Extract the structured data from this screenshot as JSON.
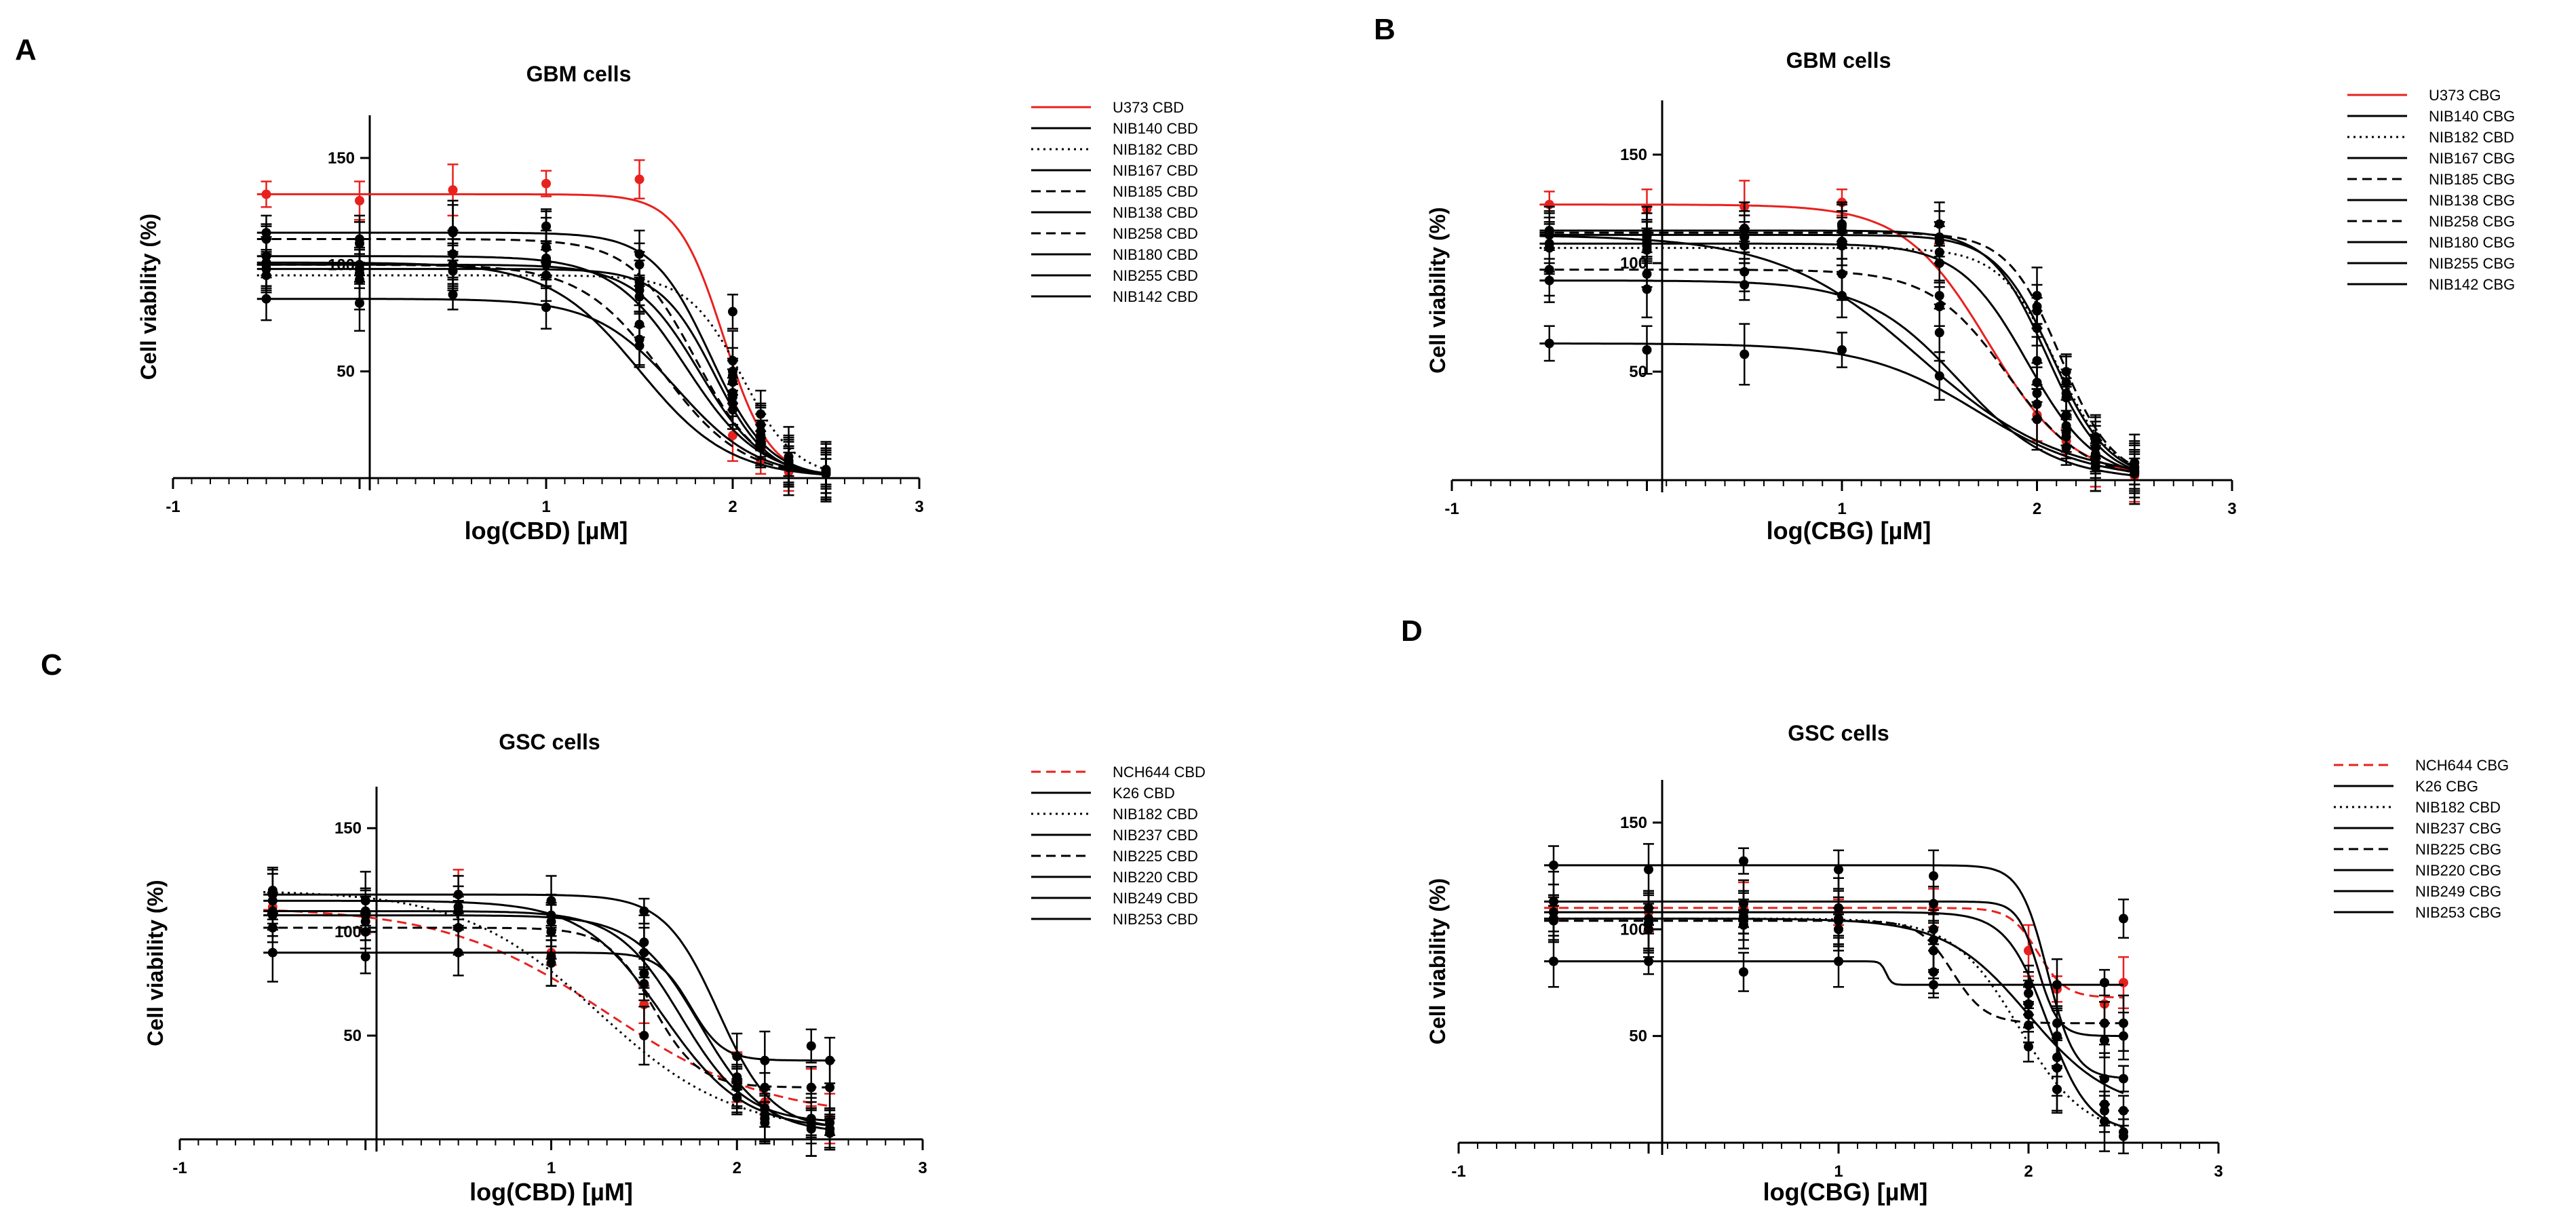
{
  "figure": {
    "description_labels": [
      "A",
      "B",
      "C",
      "D"
    ]
  },
  "chart_data": [
    {
      "panel": "A",
      "type": "line",
      "title": "GBM cells",
      "xlabel": "log(CBD) [µM]",
      "ylabel": "Cell viability (%)",
      "xlim": [
        -1,
        3
      ],
      "ylim": [
        0,
        170
      ],
      "xticks": [
        -1,
        1,
        2,
        3
      ],
      "xtick_labels": [
        "-1",
        "1",
        "2",
        "3"
      ],
      "yticks": [
        50,
        100,
        150
      ],
      "ytick_labels": [
        "50",
        "100",
        "150"
      ],
      "x": [
        -0.5,
        0,
        0.5,
        1,
        1.5,
        2,
        2.15,
        2.3,
        2.5
      ],
      "series": [
        {
          "name": "U373 CBD",
          "color": "#e8211e",
          "dash": "solid",
          "top": 133,
          "bottom": 0,
          "ic50": 1.95,
          "hill": 3.5,
          "values": [
            133,
            130,
            135,
            138,
            140,
            20,
            8,
            3,
            2
          ]
        },
        {
          "name": "NIB140 CBD",
          "color": "#000000",
          "dash": "solid",
          "top": 100,
          "bottom": 0,
          "ic50": 1.82,
          "hill": 2.5,
          "values": [
            100,
            98,
            100,
            103,
            88,
            45,
            22,
            8,
            3
          ]
        },
        {
          "name": "NIB182 CBD",
          "color": "#000000",
          "dash": "dotted",
          "top": 95,
          "bottom": 0,
          "ic50": 2.05,
          "hill": 3.0,
          "values": [
            95,
            93,
            97,
            100,
            92,
            78,
            30,
            10,
            4
          ]
        },
        {
          "name": "NIB167 CBD",
          "color": "#000000",
          "dash": "solid",
          "top": 98,
          "bottom": 0,
          "ic50": 1.9,
          "hill": 3.0,
          "values": [
            98,
            96,
            100,
            102,
            90,
            50,
            25,
            8,
            3
          ]
        },
        {
          "name": "NIB185 CBD",
          "color": "#000000",
          "dash": "dashed",
          "top": 112,
          "bottom": 0,
          "ic50": 1.8,
          "hill": 2.5,
          "values": [
            112,
            110,
            115,
            118,
            100,
            48,
            20,
            7,
            3
          ]
        },
        {
          "name": "NIB138 CBD",
          "color": "#000000",
          "dash": "solid",
          "top": 104,
          "bottom": 0,
          "ic50": 1.75,
          "hill": 2.2,
          "values": [
            104,
            100,
            105,
            108,
            85,
            40,
            20,
            6,
            2
          ]
        },
        {
          "name": "NIB258 CBD",
          "color": "#000000",
          "dash": "dashed",
          "top": 100,
          "bottom": 0,
          "ic50": 1.62,
          "hill": 2.0,
          "values": [
            100,
            98,
            100,
            95,
            72,
            38,
            18,
            6,
            2
          ]
        },
        {
          "name": "NIB180 CBD",
          "color": "#000000",
          "dash": "solid",
          "top": 84,
          "bottom": 0,
          "ic50": 1.7,
          "hill": 2.0,
          "values": [
            84,
            82,
            86,
            80,
            65,
            32,
            15,
            5,
            2
          ]
        },
        {
          "name": "NIB255 CBD",
          "color": "#000000",
          "dash": "solid",
          "top": 115,
          "bottom": 0,
          "ic50": 1.88,
          "hill": 2.8,
          "values": [
            115,
            112,
            116,
            118,
            105,
            55,
            25,
            8,
            3
          ]
        },
        {
          "name": "NIB142 CBD",
          "color": "#000000",
          "dash": "solid",
          "top": 101,
          "bottom": 0,
          "ic50": 1.5,
          "hill": 1.8,
          "values": [
            101,
            98,
            100,
            95,
            62,
            35,
            16,
            5,
            2
          ]
        }
      ]
    },
    {
      "panel": "B",
      "type": "line",
      "title": "GBM cells",
      "xlabel": "log(CBG) [µM]",
      "ylabel": "Cell viability (%)",
      "xlim": [
        -1,
        3
      ],
      "ylim": [
        0,
        175
      ],
      "xticks": [
        -1,
        1,
        2,
        3
      ],
      "xtick_labels": [
        "-1",
        "1",
        "2",
        "3"
      ],
      "yticks": [
        50,
        100,
        150
      ],
      "ytick_labels": [
        "50",
        "100",
        "150"
      ],
      "x": [
        -0.5,
        0,
        0.5,
        1,
        1.5,
        2,
        2.15,
        2.3,
        2.5
      ],
      "series": [
        {
          "name": "U373 CBG",
          "color": "#e8211e",
          "dash": "solid",
          "top": 127,
          "bottom": 0,
          "ic50": 1.75,
          "hill": 2.0,
          "values": [
            127,
            125,
            126,
            128,
            100,
            30,
            18,
            6,
            2
          ]
        },
        {
          "name": "NIB140 CBG",
          "color": "#000000",
          "dash": "solid",
          "top": 113,
          "bottom": 0,
          "ic50": 2.08,
          "hill": 3.0,
          "values": [
            113,
            112,
            112,
            115,
            110,
            80,
            45,
            18,
            8
          ]
        },
        {
          "name": "NIB182 CBD",
          "color": "#000000",
          "dash": "dotted",
          "top": 107,
          "bottom": 0,
          "ic50": 2.1,
          "hill": 3.0,
          "values": [
            107,
            106,
            108,
            110,
            105,
            70,
            40,
            15,
            6
          ]
        },
        {
          "name": "NIB167 CBG",
          "color": "#000000",
          "dash": "solid",
          "top": 115,
          "bottom": 0,
          "ic50": 2.05,
          "hill": 3.0,
          "values": [
            115,
            114,
            116,
            118,
            112,
            78,
            38,
            15,
            6
          ]
        },
        {
          "name": "NIB185 CBG",
          "color": "#000000",
          "dash": "dashed",
          "top": 114,
          "bottom": 0,
          "ic50": 2.12,
          "hill": 3.2,
          "values": [
            114,
            113,
            115,
            117,
            118,
            85,
            50,
            20,
            8
          ]
        },
        {
          "name": "NIB138 CBG",
          "color": "#000000",
          "dash": "solid",
          "top": 109,
          "bottom": 0,
          "ic50": 1.95,
          "hill": 2.5,
          "values": [
            109,
            108,
            108,
            110,
            100,
            55,
            30,
            12,
            5
          ]
        },
        {
          "name": "NIB258 CBG",
          "color": "#000000",
          "dash": "dashed",
          "top": 97,
          "bottom": 0,
          "ic50": 1.85,
          "hill": 2.2,
          "values": [
            97,
            95,
            96,
            95,
            85,
            45,
            25,
            10,
            4
          ]
        },
        {
          "name": "NIB180 CBG",
          "color": "#000000",
          "dash": "solid",
          "top": 92,
          "bottom": 0,
          "ic50": 1.6,
          "hill": 1.8,
          "values": [
            92,
            88,
            90,
            85,
            68,
            35,
            20,
            8,
            3
          ]
        },
        {
          "name": "NIB255 CBG",
          "color": "#000000",
          "dash": "solid",
          "top": 63,
          "bottom": 0,
          "ic50": 1.7,
          "hill": 1.5,
          "values": [
            63,
            60,
            58,
            60,
            48,
            28,
            15,
            6,
            3
          ]
        },
        {
          "name": "NIB142 CBG",
          "color": "#000000",
          "dash": "solid",
          "top": 113,
          "bottom": 0,
          "ic50": 1.4,
          "hill": 1.2,
          "values": [
            113,
            110,
            112,
            108,
            80,
            40,
            22,
            10,
            4
          ]
        }
      ]
    },
    {
      "panel": "C",
      "type": "line",
      "title": "GSC cells",
      "xlabel": "log(CBD) [µM]",
      "ylabel": "Cell viability (%)",
      "xlim": [
        -1,
        3
      ],
      "ylim": [
        0,
        170
      ],
      "xticks": [
        -1,
        1,
        2,
        3
      ],
      "xtick_labels": [
        "-1",
        "1",
        "2",
        "3"
      ],
      "yticks": [
        50,
        100,
        150
      ],
      "ytick_labels": [
        "50",
        "100",
        "150"
      ],
      "x": [
        -0.5,
        0,
        0.5,
        1,
        1.5,
        2,
        2.15,
        2.4,
        2.5
      ],
      "series": [
        {
          "name": "NCH644 CBD",
          "color": "#e8211e",
          "dash": "dashed",
          "top": 112,
          "bottom": 10,
          "ic50": 1.3,
          "hill": 1.0,
          "values": [
            112,
            108,
            118,
            90,
            65,
            30,
            18,
            25,
            10
          ]
        },
        {
          "name": "K26 CBD",
          "color": "#000000",
          "dash": "solid",
          "top": 115,
          "bottom": 5,
          "ic50": 1.6,
          "hill": 2.0,
          "values": [
            115,
            110,
            112,
            100,
            80,
            25,
            12,
            8,
            5
          ]
        },
        {
          "name": "NIB182 CBD",
          "color": "#000000",
          "dash": "dotted",
          "top": 120,
          "bottom": 3,
          "ic50": 1.25,
          "hill": 1.2,
          "values": [
            120,
            115,
            110,
            85,
            50,
            20,
            10,
            6,
            3
          ]
        },
        {
          "name": "NIB237 CBD",
          "color": "#000000",
          "dash": "solid",
          "top": 110,
          "bottom": 8,
          "ic50": 1.7,
          "hill": 2.5,
          "values": [
            110,
            108,
            112,
            105,
            90,
            30,
            15,
            10,
            8
          ]
        },
        {
          "name": "NIB225 CBD",
          "color": "#000000",
          "dash": "dashed",
          "top": 102,
          "bottom": 25,
          "ic50": 1.55,
          "hill": 3.5,
          "values": [
            102,
            100,
            102,
            100,
            80,
            28,
            25,
            25,
            25
          ]
        },
        {
          "name": "NIB220 CBD",
          "color": "#000000",
          "dash": "solid",
          "top": 90,
          "bottom": 38,
          "ic50": 1.75,
          "hill": 5.0,
          "values": [
            90,
            88,
            90,
            88,
            75,
            40,
            38,
            45,
            38
          ]
        },
        {
          "name": "NIB249 CBD",
          "color": "#000000",
          "dash": "solid",
          "top": 118,
          "bottom": 5,
          "ic50": 1.9,
          "hill": 3.0,
          "values": [
            118,
            115,
            118,
            115,
            110,
            25,
            10,
            8,
            5
          ]
        },
        {
          "name": "NIB253 CBD",
          "color": "#000000",
          "dash": "solid",
          "top": 108,
          "bottom": 3,
          "ic50": 1.8,
          "hill": 2.5,
          "values": [
            108,
            105,
            110,
            108,
            95,
            20,
            8,
            5,
            3
          ]
        }
      ]
    },
    {
      "panel": "D",
      "type": "line",
      "title": "GSC cells",
      "xlabel": "log(CBG) [µM]",
      "ylabel": "Cell viability (%)",
      "xlim": [
        -1,
        3
      ],
      "ylim": [
        0,
        170
      ],
      "xticks": [
        -1,
        1,
        2,
        3
      ],
      "xtick_labels": [
        "-1",
        "1",
        "2",
        "3"
      ],
      "yticks": [
        50,
        100,
        150
      ],
      "ytick_labels": [
        "50",
        "100",
        "150"
      ],
      "x": [
        -0.5,
        0,
        0.5,
        1,
        1.5,
        2,
        2.15,
        2.4,
        2.5
      ],
      "series": [
        {
          "name": "NCH644 CBG",
          "color": "#e8211e",
          "dash": "dashed",
          "top": 110,
          "bottom": 68,
          "ic50": 2.05,
          "hill": 6.0,
          "values": [
            110,
            108,
            110,
            108,
            110,
            90,
            72,
            65,
            75
          ]
        },
        {
          "name": "K26 CBG",
          "color": "#000000",
          "dash": "solid",
          "top": 108,
          "bottom": 5,
          "ic50": 2.1,
          "hill": 4.0,
          "values": [
            108,
            105,
            108,
            105,
            100,
            70,
            35,
            15,
            5
          ]
        },
        {
          "name": "NIB182 CBD",
          "color": "#000000",
          "dash": "dotted",
          "top": 105,
          "bottom": 3,
          "ic50": 1.95,
          "hill": 2.5,
          "values": [
            105,
            103,
            106,
            104,
            95,
            55,
            25,
            10,
            3
          ]
        },
        {
          "name": "NIB237 CBG",
          "color": "#000000",
          "dash": "solid",
          "top": 130,
          "bottom": 30,
          "ic50": 2.1,
          "hill": 6.0,
          "values": [
            130,
            128,
            132,
            128,
            125,
            60,
            40,
            30,
            30
          ]
        },
        {
          "name": "NIB225 CBG",
          "color": "#000000",
          "dash": "dashed",
          "top": 104,
          "bottom": 56,
          "ic50": 1.6,
          "hill": 5.0,
          "values": [
            104,
            100,
            104,
            100,
            80,
            60,
            56,
            56,
            56
          ]
        },
        {
          "name": "NIB220 CBG",
          "color": "#000000",
          "dash": "solid",
          "top": 113,
          "bottom": 50,
          "ic50": 2.05,
          "hill": 8.0,
          "values": [
            113,
            110,
            112,
            110,
            112,
            65,
            50,
            48,
            50
          ]
        },
        {
          "name": "NIB249 CBG",
          "color": "#000000",
          "dash": "solid",
          "top": 85,
          "bottom": 74,
          "ic50": 1.25,
          "hill": 30.0,
          "values": [
            85,
            85,
            80,
            85,
            74,
            74,
            74,
            75,
            105
          ]
        },
        {
          "name": "NIB253 CBG",
          "color": "#000000",
          "dash": "solid",
          "top": 105,
          "bottom": 15,
          "ic50": 2.0,
          "hill": 2.0,
          "values": [
            105,
            100,
            102,
            100,
            90,
            45,
            25,
            18,
            15
          ]
        }
      ]
    }
  ]
}
